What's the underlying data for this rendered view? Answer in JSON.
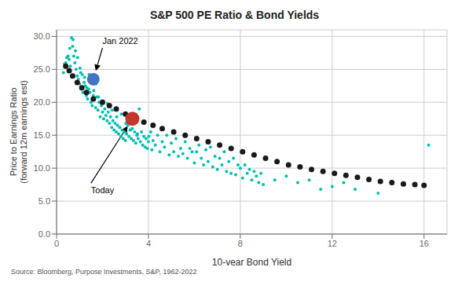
{
  "chart_data": {
    "type": "scatter",
    "title": "S&P 500 PE Ratio & Bond Yields",
    "xlabel": "10-year Bond Yield",
    "ylabel": "Price to Earnings Ratio\n(forward 12m earnings est)",
    "source": "Source: Bloomberg, Purpose Investments, S&P, 1962-2022",
    "xlim": [
      0,
      17
    ],
    "ylim": [
      0,
      31
    ],
    "xticks": [
      0,
      4,
      8,
      12,
      16
    ],
    "yticks": [
      {
        "value": 0,
        "label": "0.0"
      },
      {
        "value": 5,
        "label": "5.0"
      },
      {
        "value": 10,
        "label": "10.0"
      },
      {
        "value": 15,
        "label": "15.0"
      },
      {
        "value": 20,
        "label": "20.0"
      },
      {
        "value": 25,
        "label": "25.0"
      },
      {
        "value": 30,
        "label": "30.0"
      }
    ],
    "grid": true,
    "series": [
      {
        "color": "#00BFB3",
        "x": [
          0.3,
          0.4,
          0.5,
          0.55,
          0.6,
          0.65,
          0.7,
          0.75,
          0.8,
          0.85,
          0.9,
          0.95,
          1.0,
          1.05,
          1.1,
          1.15,
          1.2,
          1.25,
          1.3,
          1.35,
          1.4,
          1.45,
          1.5,
          1.55,
          1.6,
          1.65,
          1.7,
          1.75,
          1.8,
          1.85,
          1.9,
          1.95,
          2.0,
          2.05,
          2.1,
          2.15,
          2.2,
          2.25,
          2.3,
          2.35,
          2.4,
          2.45,
          2.5,
          2.55,
          2.6,
          2.65,
          2.7,
          2.75,
          2.8,
          2.85,
          2.9,
          2.95,
          3.0,
          3.05,
          3.1,
          3.15,
          3.2,
          3.25,
          3.3,
          3.35,
          3.4,
          3.45,
          3.5,
          3.55,
          3.6,
          3.65,
          3.7,
          3.75,
          3.8,
          3.85,
          3.9,
          3.95,
          4.0,
          4.1,
          4.15,
          4.2,
          4.3,
          4.4,
          4.5,
          4.6,
          4.7,
          4.8,
          4.9,
          5.0,
          5.1,
          5.2,
          5.3,
          5.4,
          5.5,
          5.6,
          5.7,
          5.8,
          5.9,
          6.0,
          6.1,
          6.2,
          6.3,
          6.4,
          6.5,
          6.6,
          6.7,
          6.8,
          6.9,
          7.0,
          7.1,
          7.2,
          7.3,
          7.4,
          7.5,
          7.6,
          7.7,
          7.8,
          7.9,
          8.0,
          8.1,
          8.2,
          8.3,
          8.4,
          8.5,
          8.6,
          8.7,
          8.8,
          8.9,
          9.0,
          9.5,
          10.0,
          10.5,
          11.0,
          11.5,
          12.0,
          12.5,
          13.0,
          14.0,
          16.2,
          0.35,
          0.45,
          0.58,
          0.72,
          0.82,
          0.92,
          1.02,
          1.12,
          1.22,
          1.32,
          1.42,
          1.52,
          1.62,
          1.72,
          1.82,
          2.02,
          2.22,
          2.42,
          2.62,
          2.82,
          3.02,
          3.22,
          3.52,
          4.02
        ],
        "values": [
          24.5,
          26.0,
          27.0,
          26.5,
          25.5,
          29.8,
          28.5,
          27.0,
          26.0,
          25.0,
          24.0,
          23.5,
          22.8,
          24.5,
          22.0,
          21.5,
          23.0,
          22.5,
          21.0,
          20.5,
          22.0,
          21.5,
          20.0,
          19.5,
          21.0,
          20.5,
          19.2,
          20.8,
          18.8,
          20.0,
          17.8,
          19.5,
          18.5,
          17.5,
          19.0,
          18.0,
          17.2,
          18.5,
          16.8,
          17.8,
          16.2,
          17.2,
          15.8,
          16.8,
          15.5,
          16.5,
          15.2,
          16.2,
          14.8,
          15.8,
          14.5,
          15.5,
          14.2,
          15.2,
          16.5,
          14.8,
          15.8,
          14.5,
          16.0,
          14.2,
          15.5,
          13.8,
          15.0,
          14.5,
          19.0,
          14.0,
          15.5,
          13.5,
          14.8,
          13.2,
          14.5,
          13.0,
          14.0,
          15.5,
          12.8,
          14.2,
          13.5,
          15.0,
          12.5,
          14.0,
          13.2,
          15.0,
          12.0,
          13.8,
          12.5,
          14.5,
          11.8,
          13.0,
          12.2,
          14.0,
          11.5,
          13.0,
          12.5,
          10.8,
          12.5,
          13.5,
          11.5,
          10.5,
          12.8,
          11.0,
          13.2,
          10.2,
          11.8,
          9.8,
          11.5,
          10.5,
          12.5,
          9.5,
          11.0,
          9.2,
          11.5,
          9.0,
          10.5,
          10.0,
          8.5,
          10.5,
          9.2,
          9.8,
          8.2,
          9.5,
          8.8,
          7.8,
          9.2,
          7.5,
          8.2,
          8.8,
          7.8,
          8.2,
          6.8,
          7.2,
          7.8,
          6.8,
          6.2,
          13.5,
          25.8,
          26.8,
          28.2,
          29.5,
          27.8,
          26.8,
          25.2,
          24.2,
          23.8,
          22.2,
          24.2,
          23.2,
          21.8,
          22.8,
          20.8,
          20.2,
          19.8,
          18.8,
          17.8,
          18.2,
          16.8,
          15.8,
          15.2,
          14.8
        ]
      },
      {
        "color": "#1a1a1a",
        "x": [
          0.4,
          0.55,
          0.7,
          0.9,
          1.1,
          1.3,
          1.6,
          2.0,
          2.3,
          2.6,
          3.0,
          3.4,
          3.8,
          4.2,
          4.6,
          5.1,
          5.6,
          6.1,
          6.6,
          7.1,
          7.6,
          8.1,
          8.6,
          9.1,
          9.6,
          10.1,
          10.6,
          11.1,
          11.6,
          12.1,
          12.6,
          13.1,
          13.6,
          14.1,
          14.6,
          15.1,
          15.6,
          16.0
        ],
        "values": [
          25.5,
          24.8,
          24.0,
          23.0,
          22.2,
          21.5,
          20.5,
          20.0,
          19.5,
          19.0,
          18.2,
          17.5,
          17.0,
          16.5,
          16.0,
          15.5,
          15.0,
          14.5,
          14.0,
          13.5,
          13.0,
          12.5,
          12.0,
          11.5,
          11.0,
          10.5,
          10.2,
          9.8,
          9.5,
          9.2,
          8.9,
          8.6,
          8.3,
          8.0,
          7.8,
          7.6,
          7.5,
          7.4
        ]
      },
      {
        "color": "#4472C4",
        "x": [
          1.6
        ],
        "values": [
          23.5
        ]
      },
      {
        "color": "#C0392B",
        "x": [
          3.3
        ],
        "values": [
          17.5
        ]
      }
    ],
    "annotations": [
      {
        "text": "Jan 2022",
        "xy": [
          1.6,
          23.5
        ],
        "xytext": [
          2.0,
          28.5
        ]
      },
      {
        "text": "Today",
        "xy": [
          3.3,
          17.5
        ],
        "xytext": [
          1.5,
          7.5
        ]
      }
    ]
  }
}
